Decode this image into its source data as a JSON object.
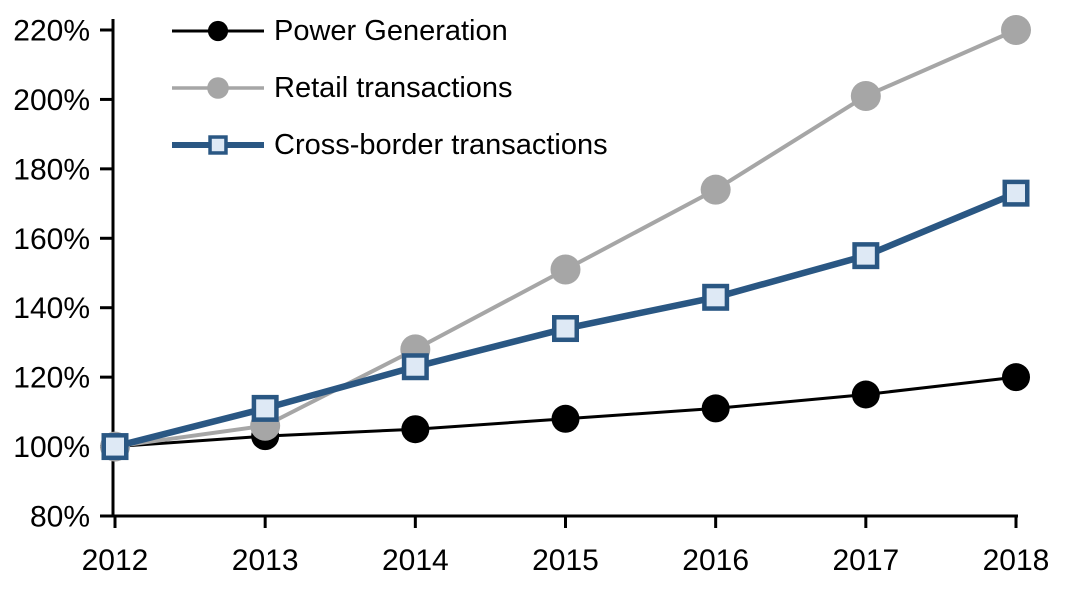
{
  "chart_data": {
    "type": "line",
    "title": "",
    "xlabel": "",
    "ylabel": "",
    "x": [
      "2012",
      "2013",
      "2014",
      "2015",
      "2016",
      "2017",
      "2018"
    ],
    "ylim": [
      80,
      220
    ],
    "ytick_step": 20,
    "ytick_suffix": "%",
    "grid": false,
    "legend_position": "top-left",
    "background_color": "#FFFFFF",
    "axis_color": "#000000",
    "series": [
      {
        "name": "Power Generation",
        "values": [
          100,
          103,
          105,
          108,
          111,
          115,
          120
        ],
        "color": "#000000",
        "line_width": 3,
        "marker": "circle",
        "marker_fill": "#000000",
        "marker_size": 28
      },
      {
        "name": "Retail transactions",
        "values": [
          100,
          106,
          128,
          151,
          174,
          201,
          220
        ],
        "color": "#A6A6A6",
        "line_width": 4,
        "marker": "circle",
        "marker_fill": "#A6A6A6",
        "marker_size": 30
      },
      {
        "name": "Cross-border transactions",
        "values": [
          100,
          111,
          123,
          134,
          143,
          155,
          173
        ],
        "color": "#2A5783",
        "line_width": 6.5,
        "marker": "square",
        "marker_fill": "#DEE9F5",
        "marker_stroke": "#2A5783",
        "marker_size": 27
      }
    ]
  }
}
